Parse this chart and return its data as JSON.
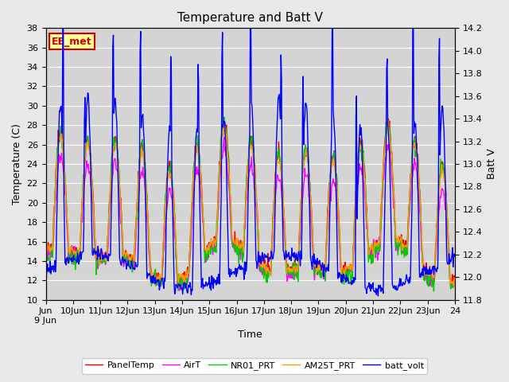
{
  "title": "Temperature and Batt V",
  "ylabel_left": "Temperature (C)",
  "ylabel_right": "Batt V",
  "xlabel": "Time",
  "ylim_left": [
    10,
    38
  ],
  "ylim_right": [
    11.8,
    14.2
  ],
  "annotation_text": "EE_met",
  "annotation_color": "#cc0000",
  "annotation_bg": "#ffff99",
  "fig_bg_color": "#e8e8e8",
  "plot_bg_color": "#d4d4d4",
  "grid_color": "#ffffff",
  "legend_entries": [
    "PanelTemp",
    "AirT",
    "NR01_PRT",
    "AM25T_PRT",
    "batt_volt"
  ],
  "legend_colors": [
    "#ff0000",
    "#ff00ff",
    "#00cc00",
    "#ff9900",
    "#0000ff"
  ],
  "line_width": 1.0,
  "title_fontsize": 11,
  "tick_fontsize": 8,
  "label_fontsize": 9
}
